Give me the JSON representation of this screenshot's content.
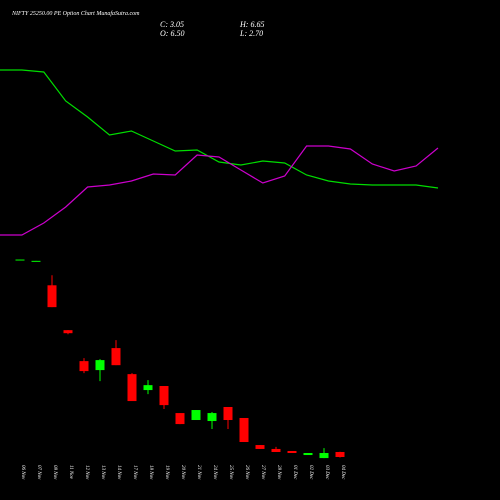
{
  "chart_data": {
    "type": "candlestick",
    "title": "NIFTY 25250.00 PE Option Chart MunafaSutra.com",
    "annotations": {
      "close": "C: 3.05",
      "high": "H: 6.65",
      "open": "O: 6.50",
      "low": "L: 2.70"
    },
    "categories": [
      "06 Nov",
      "07 Nov",
      "08 Nov",
      "11 Nov",
      "12 Nov",
      "13 Nov",
      "14 Nov",
      "17 Nov",
      "18 Nov",
      "19 Nov",
      "20 Nov",
      "21 Nov",
      "24 Nov",
      "25 Nov",
      "26 Nov",
      "27 Nov",
      "28 Nov",
      "01 Dec",
      "02 Dec",
      "03 Dec",
      "04 Dec"
    ],
    "open": [
      139,
      138.3,
      121.7,
      90.7,
      69.3,
      63.1,
      78.3,
      60.3,
      49.3,
      52.1,
      33.4,
      28.6,
      27.9,
      37.6,
      30.0,
      11.3,
      8.6,
      7.2,
      4.4,
      2.3,
      6.5
    ],
    "high": [
      139.5,
      138.6,
      128.6,
      90.7,
      71.4,
      70.7,
      83.8,
      61.0,
      56.2,
      52.1,
      33.4,
      35.5,
      34.1,
      37.6,
      30.0,
      11.3,
      10.0,
      7.2,
      5.8,
      9.2,
      6.65
    ],
    "low": [
      139,
      138.3,
      106.6,
      87.9,
      61.0,
      55.5,
      66.5,
      41.7,
      46.5,
      36.2,
      25.8,
      28.6,
      22.4,
      22.4,
      13.4,
      8.6,
      6.5,
      5.8,
      4.4,
      2.3,
      2.7
    ],
    "close": [
      139.5,
      138.6,
      106.6,
      88.6,
      62.4,
      70.0,
      66.5,
      41.7,
      52.7,
      38.9,
      25.8,
      35.5,
      33.4,
      28.6,
      13.4,
      8.6,
      6.5,
      5.8,
      5.8,
      5.8,
      3.05
    ],
    "up_color": "#00ff00",
    "down_color": "#ff0000",
    "ylim": [
      0,
      153
    ],
    "y2lim": [
      0,
      120
    ],
    "series": [
      {
        "color": "#00dd00",
        "axis": "y2",
        "values": [
          85,
          85,
          84,
          69.5,
          61.5,
          52.5,
          54.5,
          49.5,
          44.5,
          45,
          39,
          37.5,
          39.5,
          38.5,
          32.5,
          29.5,
          28,
          27.5,
          27.5,
          27.5,
          26
        ]
      },
      {
        "color": "#cc00cc",
        "axis": "y2",
        "values": [
          2.5,
          2.5,
          8.5,
          16.5,
          26.5,
          27.5,
          29.5,
          33,
          32.5,
          42.5,
          41.5,
          35,
          28.5,
          32,
          47,
          47,
          45.5,
          38,
          34.5,
          37,
          46
        ]
      }
    ]
  }
}
